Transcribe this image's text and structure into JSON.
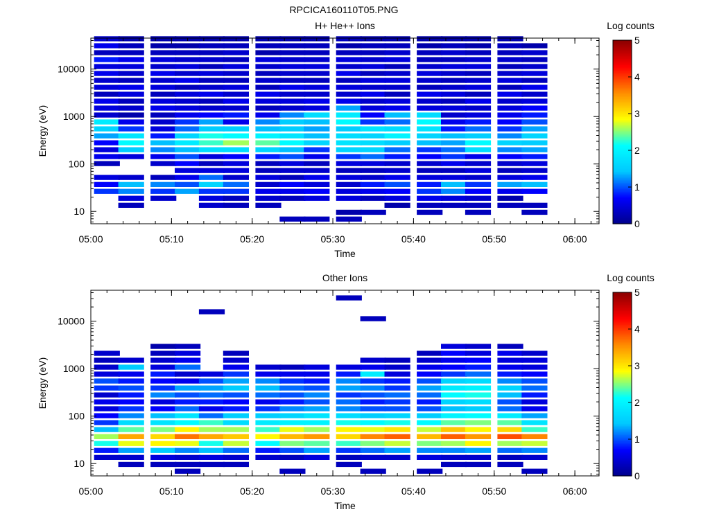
{
  "page": {
    "title": "RPCICA160110T05.PNG"
  },
  "colormap_stops": [
    "#00008b",
    "#0000ff",
    "#00c8ff",
    "#00ffff",
    "#ffff00",
    "#ff8c00",
    "#ff0000",
    "#8b0000"
  ],
  "chart_data": [
    {
      "type": "heatmap",
      "title": "H+ He++ Ions",
      "xlabel": "Time",
      "ylabel": "Energy (eV)",
      "x_ticks": [
        "05:00",
        "05:10",
        "05:20",
        "05:30",
        "05:40",
        "05:50",
        "06:00"
      ],
      "y_ticks": [
        "10",
        "100",
        "1000",
        "10000"
      ],
      "yscale": "log",
      "xlim": [
        "05:00",
        "06:03"
      ],
      "ylim": [
        5.5,
        45000
      ],
      "colorbar": {
        "label": "Log counts",
        "range": [
          0,
          5
        ],
        "ticks": [
          "0",
          "1",
          "2",
          "3",
          "4",
          "5"
        ]
      },
      "time_bins": [
        "05:02",
        "05:05",
        "05:09",
        "05:12",
        "05:15",
        "05:18",
        "05:22",
        "05:25",
        "05:28",
        "05:32",
        "05:35",
        "05:38",
        "05:42",
        "05:45",
        "05:48",
        "05:52",
        "05:55"
      ],
      "energy_bins_ev": [
        6.9,
        9.6,
        13.5,
        18.9,
        26.5,
        37,
        52,
        73,
        102,
        143,
        200,
        280,
        392,
        549,
        768,
        1075,
        1505,
        2107,
        2950,
        4130,
        5782,
        8095,
        11333,
        15866,
        22212,
        31097,
        43536
      ],
      "log_counts": [
        [
          0,
          0,
          0,
          0,
          0.9,
          0.7,
          0.5,
          0,
          0.3,
          0.6,
          0.5,
          0.7,
          1.3,
          1.6,
          1.9,
          0.4,
          0.5,
          0.6,
          0.3,
          0.5,
          0.4,
          0.6,
          0.5,
          0.8,
          0.3,
          0.6,
          0.4
        ],
        [
          0,
          0,
          0.3,
          0.5,
          1.2,
          1.4,
          0.4,
          0,
          0,
          0.5,
          1.5,
          2.1,
          1.8,
          0.9,
          0.6,
          0.2,
          0.4,
          0.3,
          0.5,
          0.6,
          0.3,
          0.4,
          0.5,
          0.6,
          0.3,
          0.3,
          0.2
        ],
        [
          0,
          0,
          0,
          0.4,
          0.9,
          1.2,
          0.3,
          0,
          0.4,
          0.6,
          1.2,
          1.4,
          0.8,
          0.5,
          0.4,
          0.3,
          0.6,
          0.5,
          0.3,
          0.5,
          0.4,
          0.6,
          0.4,
          0.5,
          0.3,
          0.2,
          0.2
        ],
        [
          0,
          0,
          0,
          0,
          1.3,
          1.0,
          0.6,
          0.5,
          0.7,
          1.0,
          1.4,
          1.9,
          1.6,
          1.1,
          0.9,
          0.6,
          0.5,
          0.4,
          0.5,
          0.3,
          0.6,
          0.4,
          0.5,
          0.4,
          0.3,
          0.2,
          0.2
        ],
        [
          0,
          0,
          0.4,
          0.5,
          0.9,
          1.6,
          1.1,
          0.5,
          0.3,
          0.5,
          1.7,
          2.3,
          2.2,
          1.5,
          1.3,
          0.7,
          0.4,
          0.3,
          0.6,
          0.4,
          0.3,
          0.5,
          0.3,
          0.4,
          0.3,
          0.3,
          0.2
        ],
        [
          0,
          0,
          0.3,
          0.3,
          0.9,
          1.1,
          0.4,
          0.5,
          0.5,
          0.7,
          1.7,
          2.6,
          2.1,
          1.5,
          0.6,
          0.8,
          0.4,
          0.6,
          0.4,
          0.5,
          0.3,
          0.4,
          0.5,
          0.3,
          0.4,
          0.3,
          0.2
        ],
        [
          0,
          0,
          0.3,
          0.4,
          0.6,
          0.4,
          0.5,
          0.3,
          0.3,
          0.8,
          1.6,
          2.4,
          2.0,
          1.4,
          1.2,
          0.6,
          0.3,
          0.5,
          0.6,
          0.3,
          0.4,
          0.3,
          0.4,
          0.5,
          0.2,
          0.3,
          0.2
        ],
        [
          0.3,
          0,
          0,
          0.3,
          0.6,
          0.7,
          0.3,
          0.4,
          0.5,
          1.0,
          1.4,
          2.1,
          1.8,
          1.5,
          1.5,
          1.2,
          0.4,
          0.5,
          0.4,
          0.6,
          0.3,
          0.4,
          0.5,
          0.4,
          0.3,
          0.3,
          0.2
        ],
        [
          0.3,
          0,
          0,
          0.5,
          0.7,
          0.5,
          0.6,
          0.4,
          0.3,
          0.6,
          0.9,
          1.6,
          1.4,
          1.3,
          1.4,
          1.7,
          0.5,
          0.6,
          0.4,
          0.5,
          0.3,
          0.4,
          0.5,
          0.4,
          0.3,
          0.3,
          0.2
        ],
        [
          0.3,
          0.2,
          0,
          0.5,
          0.5,
          0.4,
          0.5,
          0.3,
          0.5,
          0.9,
          1.6,
          1.8,
          1.7,
          1.5,
          2.1,
          1.9,
          1.3,
          0.6,
          0.4,
          0.5,
          0.3,
          0.6,
          0.4,
          0.5,
          0.3,
          0.2,
          0.3
        ],
        [
          0,
          0.3,
          0,
          0.3,
          0.6,
          0.8,
          0.4,
          0.3,
          0.5,
          1.1,
          1.6,
          1.7,
          1.6,
          1.8,
          0.9,
          0.7,
          0.5,
          0.4,
          0.6,
          0.4,
          0.5,
          0.3,
          0.5,
          0.4,
          0.3,
          0.3,
          0.2
        ],
        [
          0,
          0,
          0.2,
          0.5,
          0.7,
          1.0,
          0.6,
          0.4,
          0.4,
          0.8,
          1.1,
          1.5,
          2.0,
          1.7,
          1.1,
          1.4,
          0.6,
          0.5,
          0.3,
          0.4,
          0.5,
          0.4,
          0.3,
          0.5,
          0.4,
          0.3,
          0.2
        ],
        [
          0,
          0.3,
          0.3,
          0.6,
          0.9,
          0.8,
          0.5,
          0.3,
          0.4,
          0.7,
          0.9,
          1.4,
          1.6,
          1.8,
          2.1,
          1.7,
          0.5,
          0.4,
          0.6,
          0.3,
          0.4,
          0.5,
          0.4,
          0.3,
          0.3,
          0.2,
          0.2
        ],
        [
          0,
          0,
          0.3,
          0.5,
          1.2,
          1.4,
          0.5,
          0.3,
          0.6,
          0.9,
          1.1,
          1.3,
          1.4,
          0.8,
          0.6,
          0.4,
          0.5,
          0.3,
          0.5,
          0.4,
          0.3,
          0.4,
          0.5,
          0.3,
          0.4,
          0.3,
          0.2
        ],
        [
          0,
          0.3,
          0.3,
          0.4,
          0.7,
          0.9,
          0.4,
          0.5,
          0.4,
          0.6,
          1.7,
          2.1,
          1.5,
          1.1,
          0.8,
          0.5,
          0.4,
          0.6,
          0.3,
          0.5,
          0.4,
          0.3,
          0.5,
          0.4,
          0.3,
          0.2,
          0.2
        ],
        [
          0,
          0,
          0.3,
          0.2,
          0.6,
          1.3,
          0.5,
          0.3,
          0.4,
          0.7,
          1.2,
          1.6,
          1.2,
          0.9,
          0.7,
          0.6,
          0.5,
          0.4,
          0.6,
          0.3,
          0.5,
          0.4,
          0.3,
          0.4,
          0.3,
          0.3,
          0.2
        ],
        [
          0,
          0.3,
          0.3,
          0,
          0.7,
          1.4,
          0.6,
          0.4,
          0.5,
          0.8,
          1.3,
          1.5,
          1.6,
          1.3,
          1.0,
          0.8,
          0.7,
          0.5,
          0.4,
          0.6,
          0.3,
          0.5,
          0.4,
          0.3,
          0.4,
          0.2,
          0
        ]
      ]
    },
    {
      "type": "heatmap",
      "title": "Other Ions",
      "xlabel": "Time",
      "ylabel": "Energy (eV)",
      "x_ticks": [
        "05:00",
        "05:10",
        "05:20",
        "05:30",
        "05:40",
        "05:50",
        "06:00"
      ],
      "y_ticks": [
        "10",
        "100",
        "1000",
        "10000"
      ],
      "yscale": "log",
      "xlim": [
        "05:00",
        "06:03"
      ],
      "ylim": [
        5.5,
        45000
      ],
      "colorbar": {
        "label": "Log counts",
        "range": [
          0,
          5
        ],
        "ticks": [
          "0",
          "1",
          "2",
          "3",
          "4",
          "5"
        ]
      },
      "time_bins": [
        "05:02",
        "05:05",
        "05:09",
        "05:12",
        "05:15",
        "05:18",
        "05:22",
        "05:25",
        "05:28",
        "05:32",
        "05:35",
        "05:38",
        "05:42",
        "05:45",
        "05:48",
        "05:52",
        "05:55"
      ],
      "energy_bins_ev": [
        6.9,
        9.6,
        13.5,
        18.9,
        26.5,
        37,
        52,
        73,
        102,
        143,
        200,
        280,
        392,
        549,
        768,
        1075,
        1505,
        2107,
        2950,
        4130,
        5782,
        8095,
        11333,
        15866,
        22212,
        31097,
        43536
      ],
      "log_counts": [
        [
          0,
          0,
          0.4,
          0.8,
          2.2,
          2.6,
          1.4,
          0.9,
          0.7,
          0.5,
          0.6,
          0.4,
          0.9,
          1.0,
          0.5,
          0.4,
          0.3,
          0.4,
          0,
          0,
          0,
          0,
          0,
          0,
          0,
          0,
          0
        ],
        [
          0,
          0.3,
          0.4,
          1.3,
          2.8,
          3.4,
          2.4,
          1.7,
          1.2,
          0.9,
          0.7,
          0.8,
          1.0,
          0.8,
          0.6,
          1.5,
          0.4,
          0,
          0,
          0,
          0,
          0,
          0,
          0,
          0,
          0,
          0
        ],
        [
          0,
          0.3,
          0.5,
          1.5,
          2.9,
          3.1,
          2.5,
          1.8,
          1.4,
          0.7,
          0.5,
          1.2,
          0.9,
          0.7,
          0.8,
          0.5,
          0.4,
          0.3,
          0.2,
          0,
          0,
          0,
          0,
          0,
          0,
          0,
          0
        ],
        [
          0.3,
          0.3,
          0.4,
          1.2,
          2.8,
          3.7,
          2.9,
          2.1,
          1.8,
          1.1,
          0.8,
          1.0,
          1.3,
          0.6,
          0.4,
          1.1,
          0.6,
          0.5,
          0.3,
          0,
          0,
          0,
          0,
          0,
          0,
          0,
          0
        ],
        [
          0,
          0.3,
          0.5,
          1.4,
          2.2,
          3.4,
          2.6,
          2.3,
          1.1,
          0.6,
          0.8,
          1.1,
          1.3,
          1.0,
          0.5,
          0,
          0,
          0,
          0,
          0,
          0,
          0,
          0,
          0.3,
          0,
          0,
          0
        ],
        [
          0,
          0.3,
          0.4,
          1.1,
          2.7,
          3.2,
          2.6,
          1.7,
          1.5,
          0.8,
          0.7,
          1.0,
          1.5,
          1.3,
          0.9,
          0.6,
          0.4,
          0.3,
          0,
          0,
          0,
          0,
          0,
          0,
          0,
          0,
          0
        ],
        [
          0,
          0,
          0.4,
          0.8,
          2.1,
          2.9,
          2.3,
          1.9,
          1.5,
          0.9,
          0.6,
          1.1,
          1.4,
          1.2,
          0.6,
          0.4,
          0,
          0,
          0,
          0,
          0,
          0,
          0,
          0,
          0,
          0,
          0
        ],
        [
          0.3,
          0,
          0.3,
          1.0,
          2.5,
          3.3,
          2.8,
          2.0,
          1.6,
          1.2,
          0.8,
          1.0,
          1.1,
          0.9,
          0.6,
          0.3,
          0,
          0,
          0,
          0,
          0,
          0,
          0,
          0,
          0,
          0,
          0
        ],
        [
          0,
          0,
          0.5,
          1.3,
          2.4,
          3.5,
          2.6,
          2.0,
          1.8,
          1.3,
          1.0,
          1.2,
          1.0,
          0.8,
          0.6,
          0.5,
          0,
          0,
          0,
          0,
          0,
          0,
          0,
          0,
          0,
          0,
          0
        ],
        [
          0,
          0.3,
          0.3,
          0.9,
          2.3,
          3.1,
          2.9,
          2.2,
          1.7,
          1.2,
          1.1,
          0.9,
          1.3,
          1.2,
          0.8,
          0.5,
          0,
          0,
          0,
          0,
          0,
          0,
          0,
          0,
          0,
          0.3,
          0
        ],
        [
          0.3,
          0,
          0.4,
          1.1,
          2.5,
          3.6,
          2.8,
          2.1,
          1.5,
          1.0,
          0.8,
          1.0,
          1.2,
          0.9,
          1.9,
          0.6,
          0.4,
          0,
          0,
          0,
          0,
          0,
          0.3,
          0,
          0,
          0,
          0
        ],
        [
          0,
          0,
          0.4,
          1.3,
          2.7,
          3.8,
          3.0,
          2.2,
          1.6,
          1.0,
          0.9,
          1.1,
          0.9,
          0.8,
          0.5,
          0.4,
          0.3,
          0,
          0,
          0,
          0,
          0,
          0,
          0,
          0,
          0,
          0
        ],
        [
          0.3,
          0,
          0.5,
          1.2,
          2.5,
          3.3,
          2.7,
          2.1,
          1.5,
          1.0,
          0.8,
          1.1,
          1.3,
          1.0,
          0.7,
          0.6,
          0.4,
          0.3,
          0,
          0,
          0,
          0,
          0,
          0,
          0,
          0,
          0
        ],
        [
          0,
          0.3,
          0.4,
          1.2,
          2.6,
          3.8,
          3.2,
          2.4,
          2.0,
          1.4,
          1.6,
          2.1,
          1.9,
          1.6,
          0.9,
          0.7,
          0.6,
          0.7,
          0.5,
          0,
          0,
          0,
          0,
          0,
          0,
          0,
          0
        ],
        [
          0,
          0.3,
          0.4,
          1.3,
          2.9,
          3.5,
          2.9,
          2.5,
          2.1,
          1.5,
          1.7,
          2.2,
          2.0,
          1.7,
          1.1,
          0.8,
          0.7,
          0.5,
          0.4,
          0,
          0,
          0,
          0,
          0,
          0,
          0,
          0
        ],
        [
          0,
          0.3,
          0.3,
          1.1,
          2.6,
          3.9,
          3.1,
          2.4,
          1.9,
          1.1,
          1.0,
          1.4,
          1.6,
          1.2,
          0.8,
          0.6,
          0.5,
          0.6,
          0.3,
          0,
          0,
          0,
          0,
          0,
          0,
          0,
          0
        ],
        [
          0.3,
          0,
          0.4,
          1.2,
          2.7,
          3.6,
          2.3,
          1.8,
          1.3,
          0.6,
          0.5,
          0.8,
          1.1,
          1.0,
          0.7,
          0.5,
          0.5,
          0.4,
          0,
          0,
          0,
          0,
          0,
          0,
          0,
          0,
          0
        ]
      ]
    }
  ]
}
